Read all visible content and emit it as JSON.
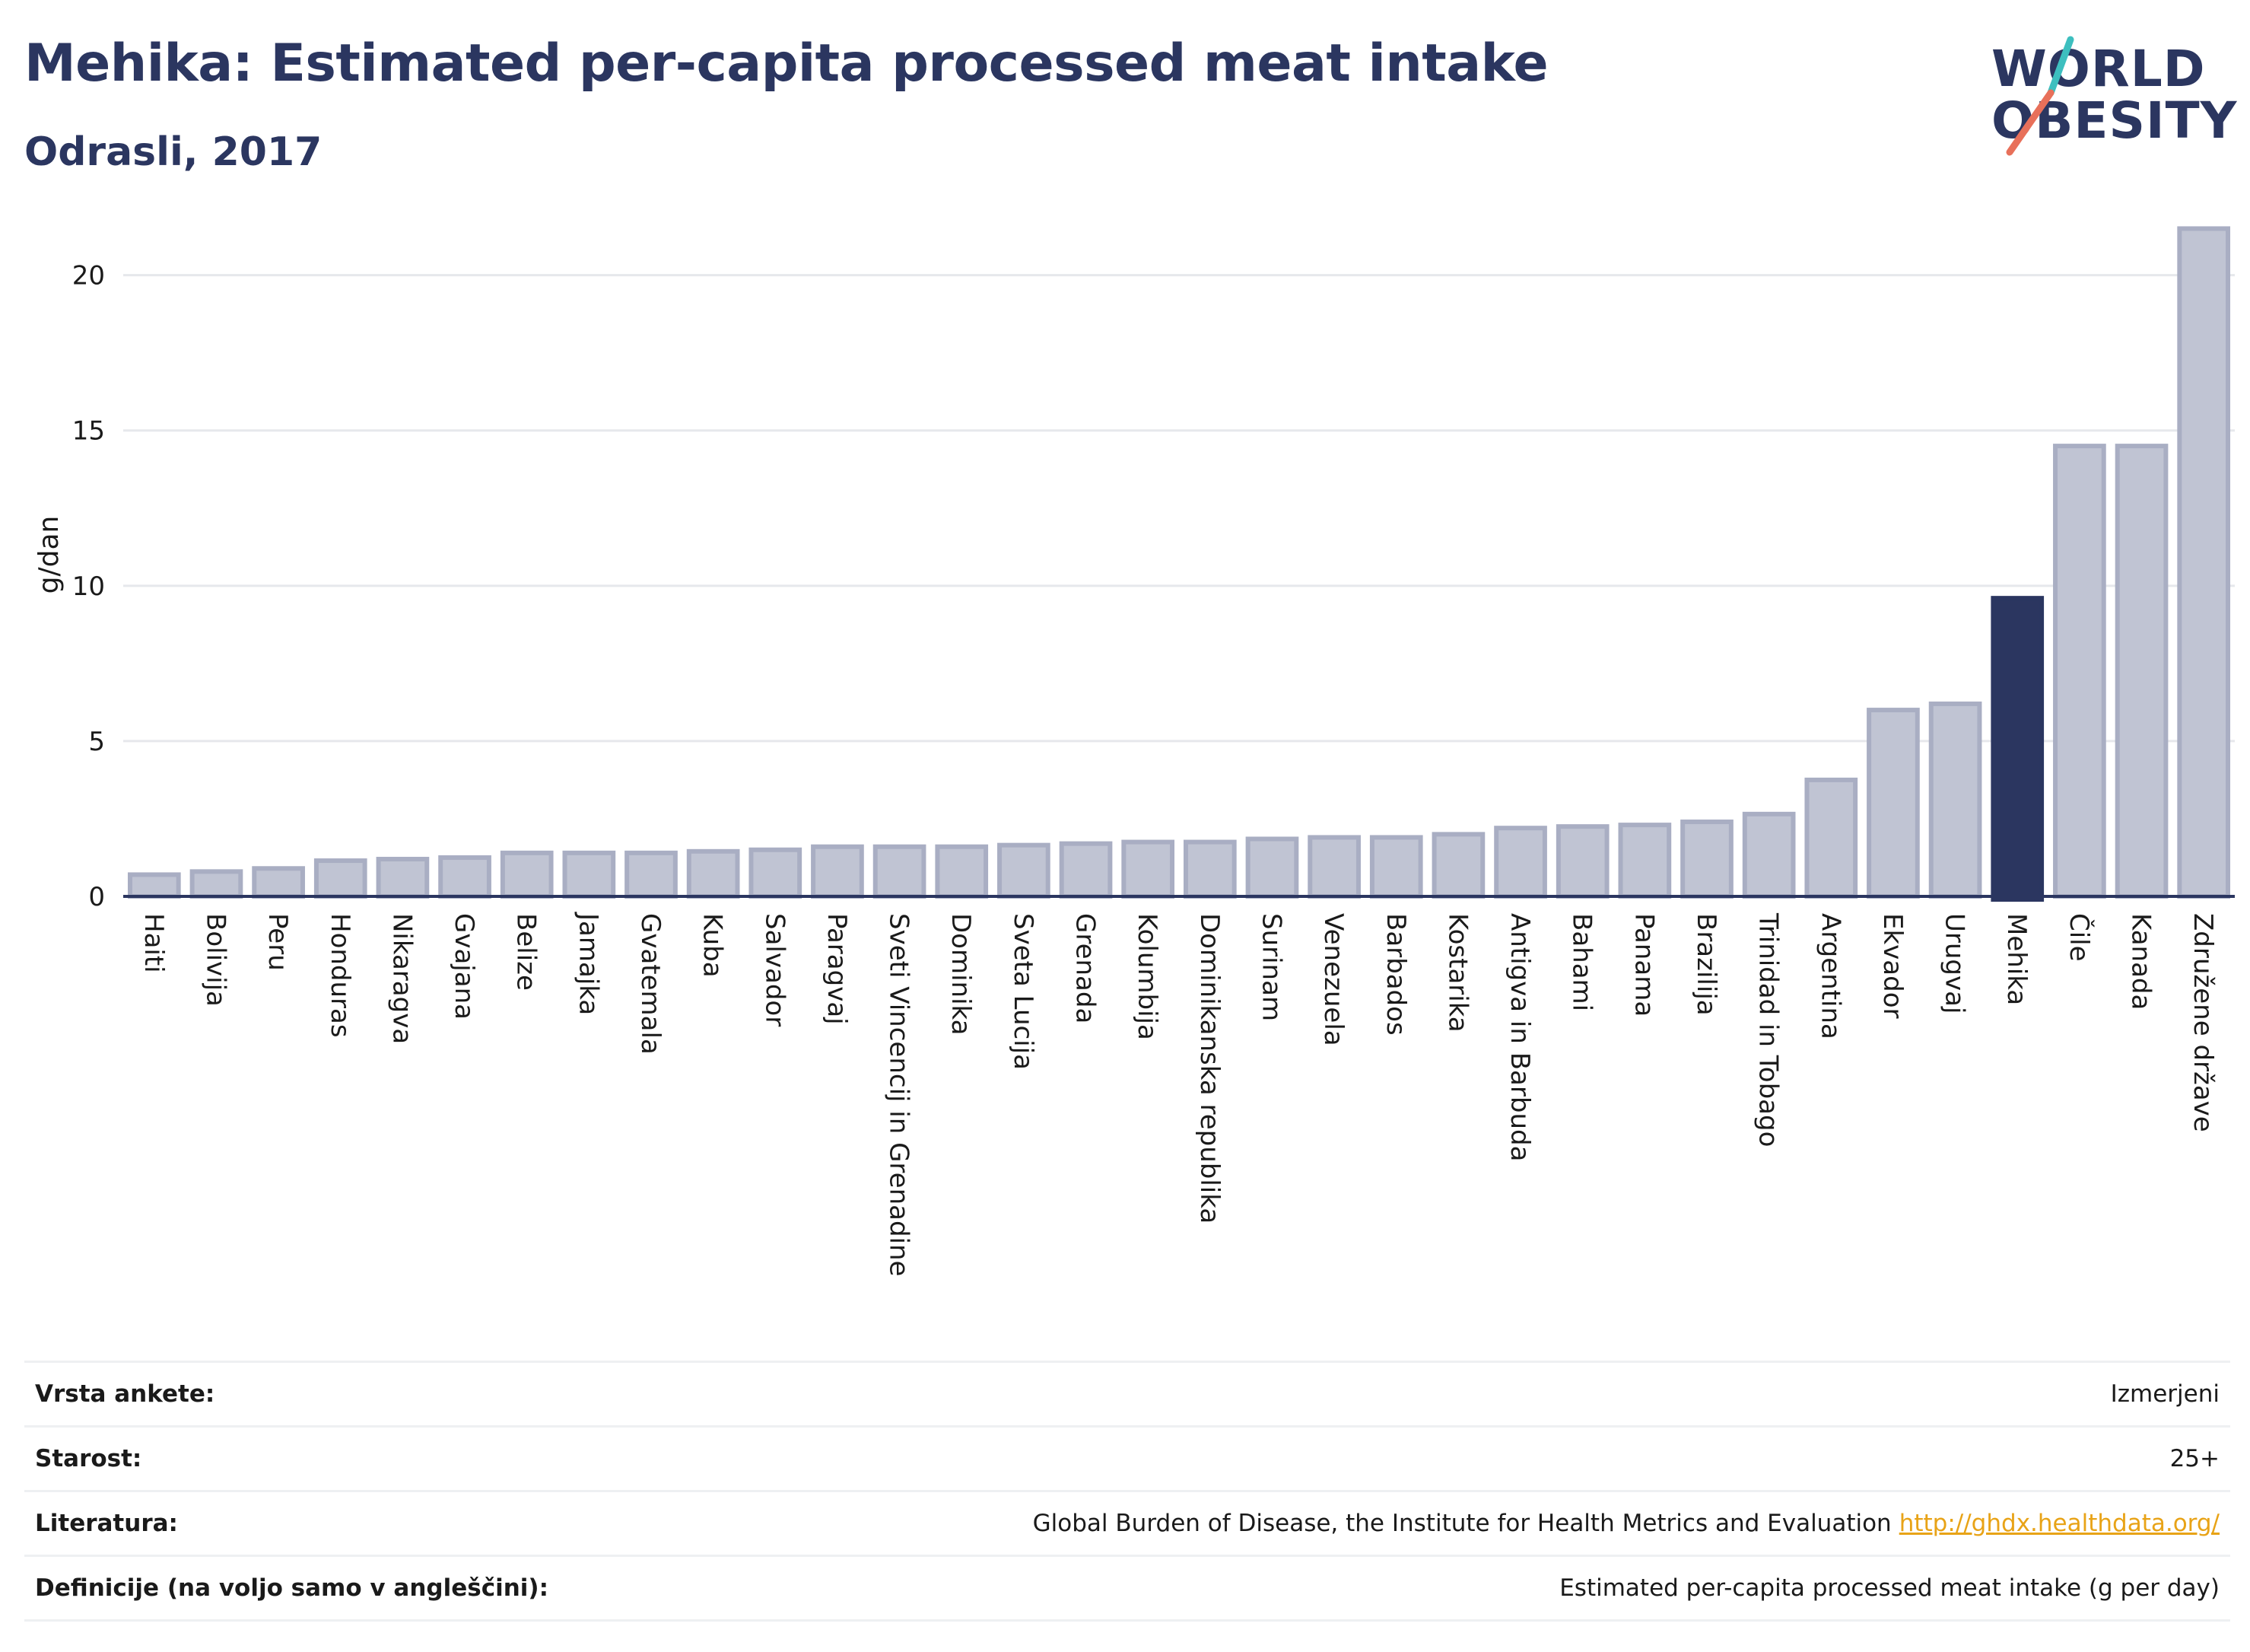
{
  "header": {
    "title": "Mehika: Estimated per-capita processed meat intake",
    "subtitle": "Odrasli, 2017"
  },
  "logo": {
    "line1": "WORLD",
    "line2": "OBESITY",
    "colors": {
      "text": "#2b3660",
      "slash_top": "#3dbfbf",
      "slash_bottom": "#e8705a"
    }
  },
  "chart_data": {
    "type": "bar",
    "ylabel": "g/dan",
    "ylim": [
      0,
      22
    ],
    "yticks": [
      0,
      5,
      10,
      15,
      20
    ],
    "grid": true,
    "highlight": "Mehika",
    "colors": {
      "bar": "#c0c4d3",
      "bar_edge": "#a9aec3",
      "highlight": "#2b3660",
      "grid": "#e6e8ec"
    },
    "categories": [
      "Haiti",
      "Bolivija",
      "Peru",
      "Honduras",
      "Nikaragva",
      "Gvajana",
      "Belize",
      "Jamajka",
      "Gvatemala",
      "Kuba",
      "Salvador",
      "Paragvaj",
      "Sveti Vincencij in Grenadine",
      "Dominika",
      "Sveta Lucija",
      "Grenada",
      "Kolumbija",
      "Dominikanska republika",
      "Surinam",
      "Venezuela",
      "Barbados",
      "Kostarika",
      "Antigva in Barbuda",
      "Bahami",
      "Panama",
      "Brazilija",
      "Trinidad in Tobago",
      "Argentina",
      "Ekvador",
      "Urugvaj",
      "Mehika",
      "Čile",
      "Kanada",
      "Združene države"
    ],
    "values": [
      0.7,
      0.8,
      0.9,
      1.15,
      1.2,
      1.25,
      1.4,
      1.4,
      1.4,
      1.45,
      1.5,
      1.6,
      1.6,
      1.6,
      1.65,
      1.7,
      1.75,
      1.75,
      1.85,
      1.9,
      1.9,
      2.0,
      2.2,
      2.25,
      2.3,
      2.4,
      2.65,
      3.75,
      6.0,
      6.2,
      9.6,
      14.5,
      14.5,
      21.5
    ]
  },
  "metadata": [
    {
      "label": "Vrsta ankete:",
      "value": "Izmerjeni",
      "link": ""
    },
    {
      "label": "Starost:",
      "value": "25+",
      "link": ""
    },
    {
      "label": "Literatura:",
      "value": "Global Burden of Disease, the Institute for Health Metrics and Evaluation",
      "link": "http://ghdx.healthdata.org/"
    },
    {
      "label": "Definicije (na voljo samo v angleščini):",
      "value": "Estimated per-capita processed meat intake (g per day)",
      "link": ""
    }
  ]
}
